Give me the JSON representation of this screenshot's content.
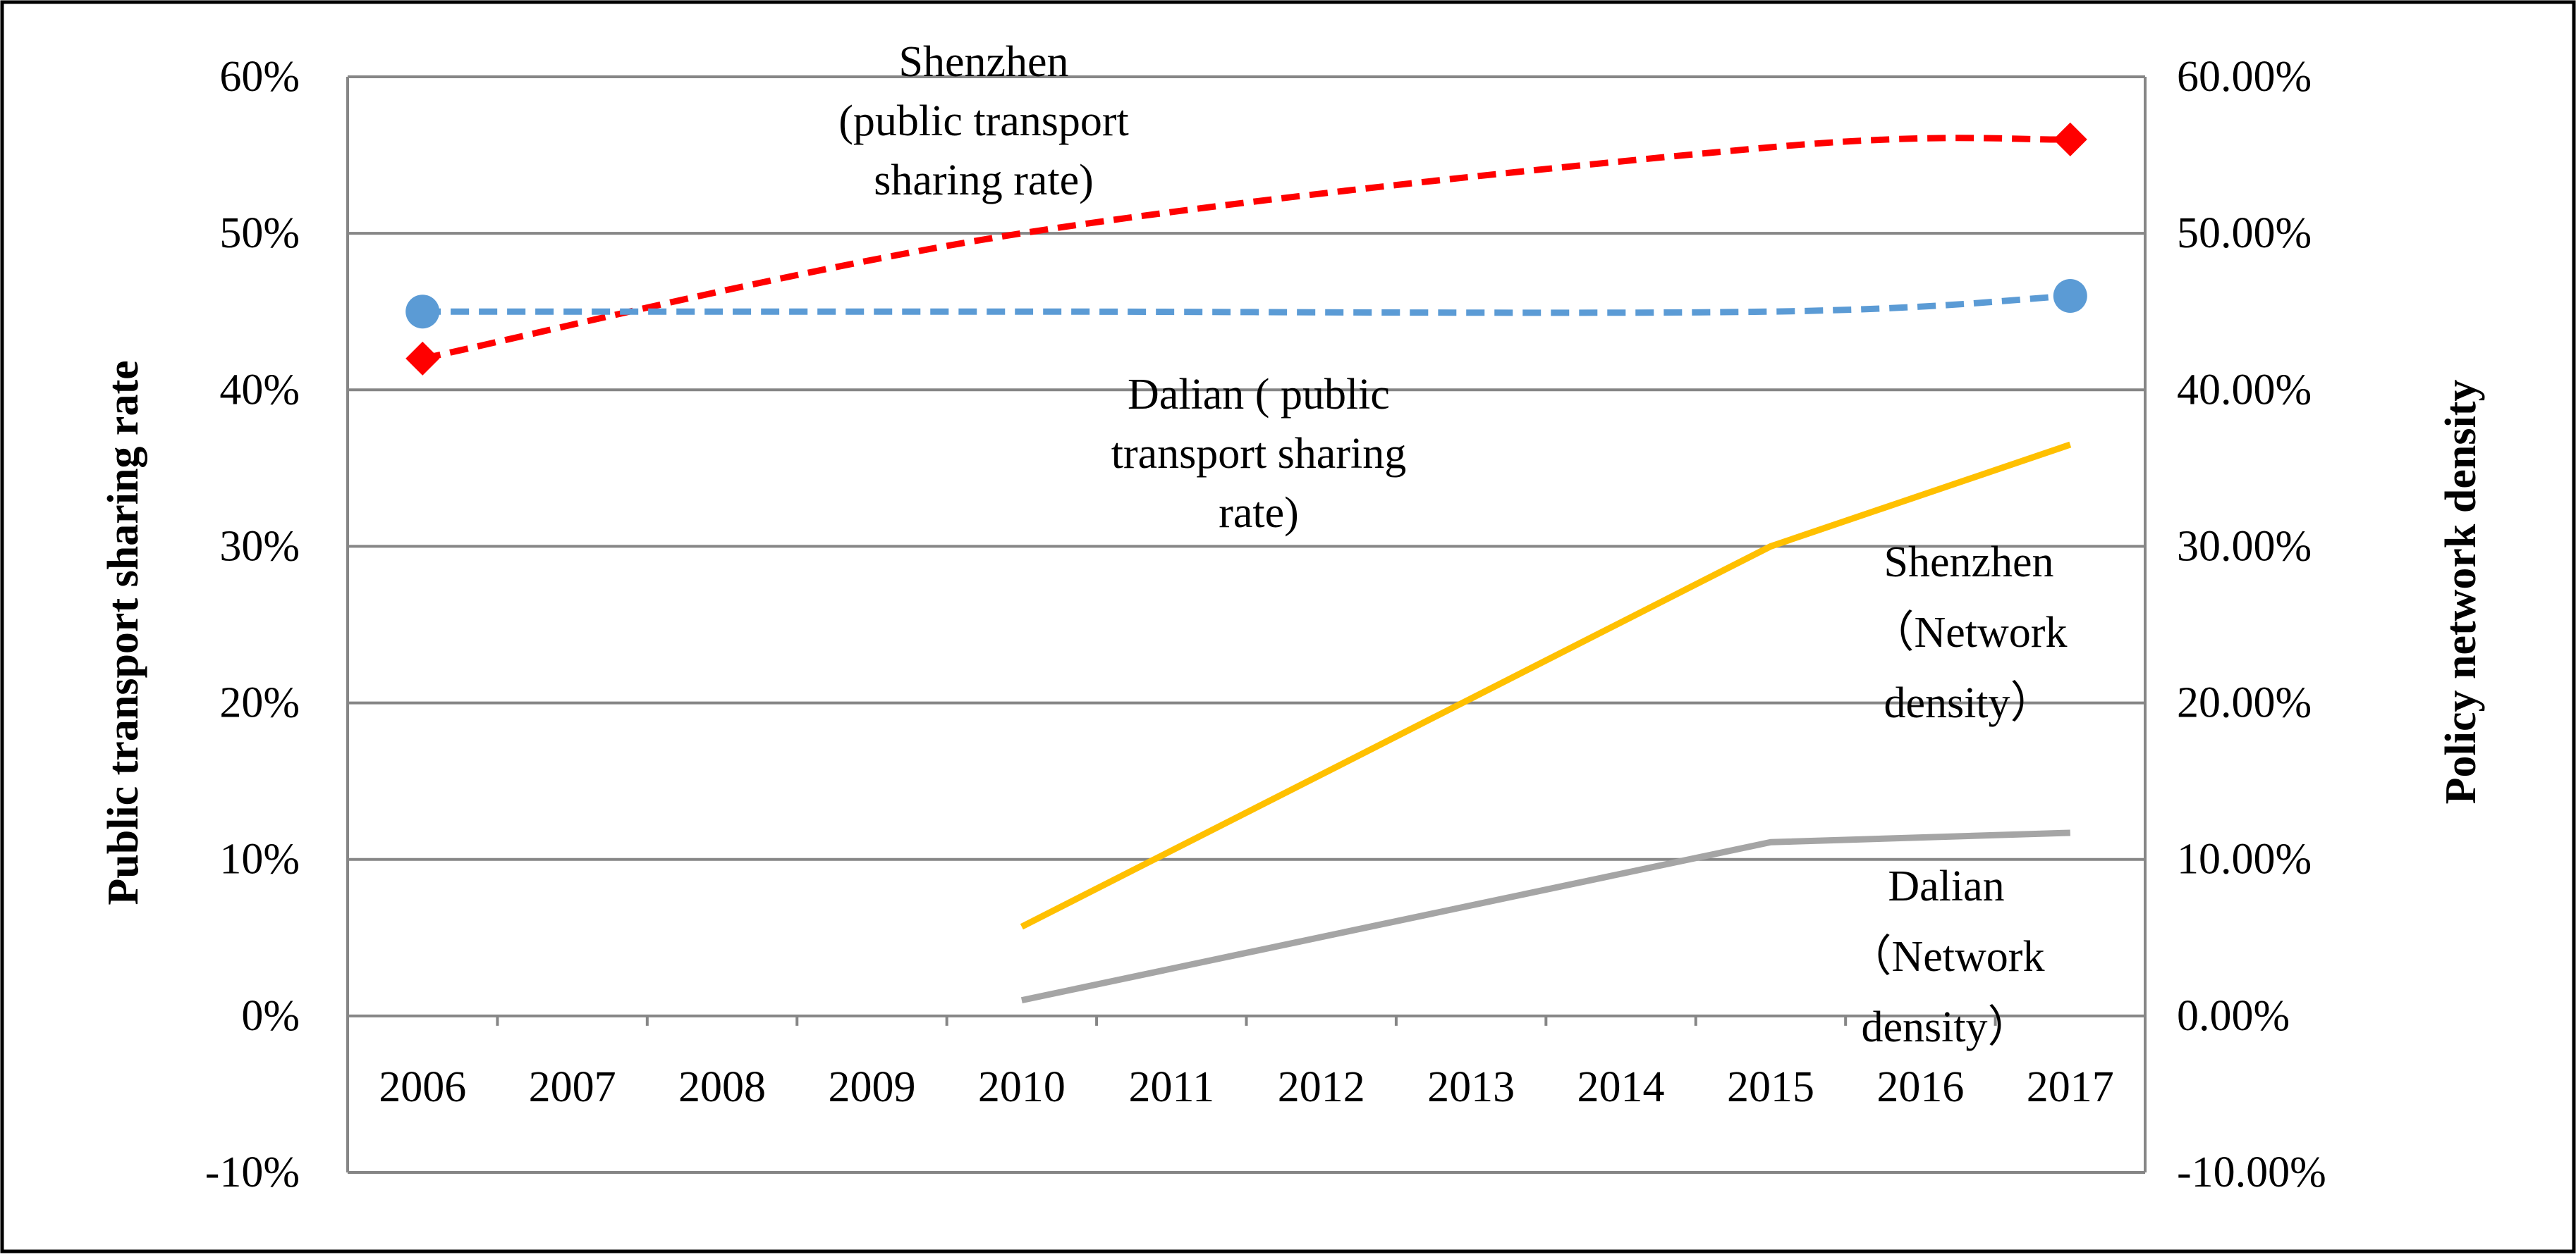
{
  "chart_data": {
    "type": "line",
    "title": "",
    "categories": [
      "2006",
      "2007",
      "2008",
      "2009",
      "2010",
      "2011",
      "2012",
      "2013",
      "2014",
      "2015",
      "2016",
      "2017"
    ],
    "left_axis": {
      "label": "Public transport sharing rate",
      "range": [
        -10,
        60
      ],
      "ticks": [
        "-10%",
        "0%",
        "10%",
        "20%",
        "30%",
        "40%",
        "50%",
        "60%"
      ]
    },
    "right_axis": {
      "label": "Policy network  density",
      "range": [
        -10,
        60
      ],
      "ticks": [
        "-10.00%",
        "0.00%",
        "10.00%",
        "20.00%",
        "30.00%",
        "40.00%",
        "50.00%",
        "60.00%"
      ]
    },
    "series": [
      {
        "name": "Shenzhen (public transport sharing rate)",
        "axis": "left",
        "color": "#ff0000",
        "style": "dashed",
        "marker": "diamond",
        "x": [
          "2006",
          "2010",
          "2015",
          "2017"
        ],
        "values": [
          42,
          50,
          55.5,
          56
        ]
      },
      {
        "name": "Dalian ( public transport sharing rate)",
        "axis": "left",
        "color": "#5b9bd5",
        "style": "dashed",
        "marker": "circle",
        "x": [
          "2006",
          "2010",
          "2015",
          "2017"
        ],
        "values": [
          45,
          45,
          45,
          46
        ]
      },
      {
        "name": "Shenzhen（Network density）",
        "axis": "right",
        "color": "#ffc000",
        "style": "solid",
        "marker": "none",
        "x": [
          "2010",
          "2015",
          "2017"
        ],
        "values": [
          5.7,
          30,
          36.5
        ]
      },
      {
        "name": "Dalian（Network density）",
        "axis": "right",
        "color": "#a5a5a5",
        "style": "solid",
        "marker": "none",
        "x": [
          "2010",
          "2015",
          "2017"
        ],
        "values": [
          1.0,
          11.1,
          11.7
        ]
      }
    ],
    "annotations": [
      {
        "series": "Shenzhen (public transport sharing rate)",
        "lines": [
          "Shenzhen",
          "(public transport",
          "sharing rate)"
        ]
      },
      {
        "series": "Dalian ( public transport sharing rate)",
        "lines": [
          "Dalian ( public",
          "transport sharing",
          "rate)"
        ]
      },
      {
        "series": "Shenzhen（Network density）",
        "lines": [
          "Shenzhen",
          "（Network",
          "density）"
        ]
      },
      {
        "series": "Dalian（Network density）",
        "lines": [
          "Dalian",
          "（Network",
          "density）"
        ]
      }
    ],
    "grid": true,
    "legend": "none (inline labels)"
  }
}
